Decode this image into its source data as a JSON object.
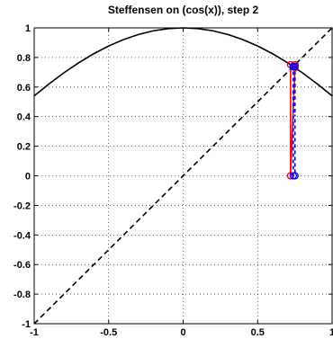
{
  "chart_data": {
    "type": "line",
    "title": "Steffensen on (cos(x)), step 2",
    "xlabel": "",
    "ylabel": "",
    "xlim": [
      -1,
      1
    ],
    "ylim": [
      -1,
      1
    ],
    "x_ticks": [
      -1,
      -0.5,
      0,
      0.5,
      1
    ],
    "x_tick_labels": [
      "-1",
      "-0.5",
      "0",
      "0.5",
      "1"
    ],
    "y_ticks": [
      -1,
      -0.8,
      -0.6,
      -0.4,
      -0.2,
      0,
      0.2,
      0.4,
      0.6,
      0.8,
      1
    ],
    "y_tick_labels": [
      "-1",
      "-0.8",
      "-0.6",
      "-0.4",
      "-0.2",
      "0",
      "0.2",
      "0.4",
      "0.6",
      "0.8",
      "1"
    ],
    "grid": true,
    "colors": {
      "function": "#000000",
      "identity": "#000000",
      "red": "#ff0000",
      "blue": "#0000ff"
    },
    "series": [
      {
        "style": "solid",
        "color": "#000000",
        "x": [
          -1,
          -0.9,
          -0.8,
          -0.7,
          -0.6,
          -0.5,
          -0.4,
          -0.3,
          -0.2,
          -0.1,
          0,
          0.1,
          0.2,
          0.3,
          0.4,
          0.5,
          0.6,
          0.7,
          0.8,
          0.9,
          1
        ],
        "y": [
          0.5403,
          0.6216,
          0.6967,
          0.7648,
          0.8253,
          0.8776,
          0.9211,
          0.9553,
          0.9801,
          0.995,
          1,
          0.995,
          0.9801,
          0.9553,
          0.9211,
          0.8776,
          0.8253,
          0.7648,
          0.6967,
          0.6216,
          0.5403
        ]
      },
      {
        "style": "dashed",
        "color": "#000000",
        "x": [
          -1,
          1
        ],
        "y": [
          -1,
          1
        ]
      },
      {
        "style": "solid",
        "color": "#ff0000",
        "markers": true,
        "x": [
          0.7214,
          0.7214,
          0.7509,
          0.7509,
          0.7214
        ],
        "y": [
          0,
          0.7509,
          0.7509,
          0.7311,
          0
        ]
      },
      {
        "style": "dashed",
        "color": "#0000ff",
        "markers": true,
        "x": [
          0.7391,
          0.7391,
          0.7391,
          0.7391,
          0.7509,
          0.7509
        ],
        "y": [
          0,
          0.7391,
          0.7391,
          0.7391,
          0.7391,
          0
        ]
      }
    ]
  }
}
